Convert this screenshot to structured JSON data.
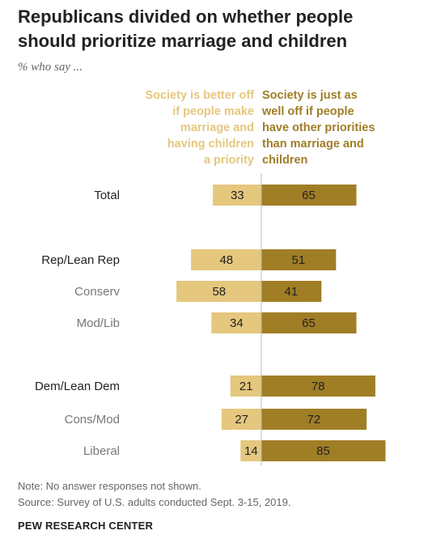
{
  "title_lines": [
    "Republicans divided on whether people",
    "should prioritize marriage and children"
  ],
  "subtitle": "% who say ...",
  "legend": {
    "left_lines": [
      "Society is better off",
      "if people make",
      "marriage and",
      "having children",
      "a priority"
    ],
    "right_lines": [
      "Society is just as",
      "well off if people",
      "have other priorities",
      "than marriage and",
      "children"
    ]
  },
  "colors": {
    "better_off": "#e5c77e",
    "just_as_well": "#a07e26",
    "category_dark": "#222222",
    "category_sub": "#777777"
  },
  "chart_data": {
    "type": "bar",
    "orientation": "horizontal-diverging",
    "categories": [
      "Total",
      "Rep/Lean Rep",
      "Conserv",
      "Mod/Lib",
      "Dem/Lean Dem",
      "Cons/Mod",
      "Liberal"
    ],
    "category_level": [
      "group",
      "group",
      "sub",
      "sub",
      "group",
      "sub",
      "sub"
    ],
    "series": [
      {
        "name": "Society is better off if people make marriage and having children a priority",
        "values": [
          33,
          48,
          58,
          34,
          21,
          27,
          14
        ]
      },
      {
        "name": "Society is just as well off if people have other priorities than marriage and children",
        "values": [
          65,
          51,
          41,
          65,
          78,
          72,
          85
        ]
      }
    ],
    "units": "%"
  },
  "notes": [
    "Note: No answer responses not shown.",
    "Source: Survey of U.S. adults conducted Sept. 3-15, 2019."
  ],
  "brand": "PEW RESEARCH CENTER"
}
